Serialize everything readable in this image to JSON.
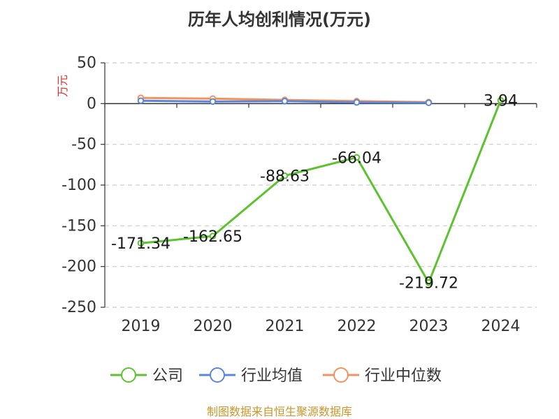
{
  "chart_data": {
    "type": "line",
    "title": "历年人均创利情况(万元)",
    "ylabel": "万元",
    "categories": [
      "2019",
      "2020",
      "2021",
      "2022",
      "2023",
      "2024"
    ],
    "ylim": [
      -250,
      50
    ],
    "yticks": [
      "50",
      "0",
      "-50",
      "-100",
      "-150",
      "-200",
      "-250"
    ],
    "ytick_values": [
      50,
      0,
      -50,
      -100,
      -150,
      -200,
      -250
    ],
    "grid": true,
    "legend_position": "bottom",
    "series": [
      {
        "name": "公司",
        "color": "#5cc22f",
        "values": [
          -171.34,
          -162.65,
          -88.63,
          -66.04,
          -219.72,
          3.94
        ],
        "labels": [
          "-171.34",
          "-162.65",
          "-88.63",
          "-66.04",
          "-219.72",
          "3.94"
        ]
      },
      {
        "name": "行业均值",
        "color": "#5b86d9",
        "values": [
          3.5,
          2.5,
          3.0,
          1.5,
          1.0,
          null
        ]
      },
      {
        "name": "行业中位数",
        "color": "#f4925e",
        "values": [
          7.0,
          6.0,
          4.5,
          3.0,
          1.8,
          null
        ]
      }
    ]
  },
  "source": "制图数据来自恒生聚源数据库"
}
